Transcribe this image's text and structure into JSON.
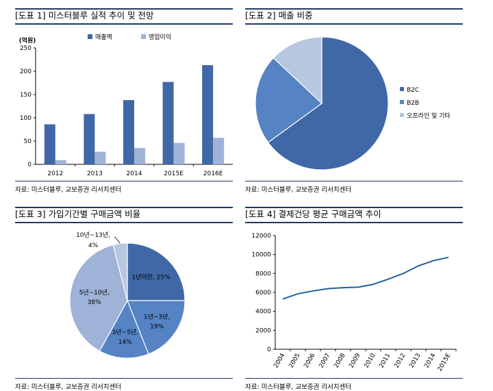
{
  "panels": [
    {
      "title": "[도표 1] 미스터블루 실적 추이 및 전망",
      "source": "자료: 미스터블루, 교보증권 리서치센터"
    },
    {
      "title": "[도표 2] 매출 비중",
      "source": "자료: 미스터블루, 교보증권 리서치센터"
    },
    {
      "title": "[도표 3] 가입기간별 구매금액 비율",
      "source": "자료: 미스터블루, 교보증권 리서치센터"
    },
    {
      "title": "[도표 4] 결제건당 평균 구매금액 추이",
      "source": "자료: 미스터블루, 교보증권 리서치센터"
    }
  ],
  "colors": {
    "dark_blue": "#4068a6",
    "mid_blue": "#5583c3",
    "light_blue": "#9fb3d8",
    "pale_blue": "#b8c7e0",
    "axis": "#000000",
    "line": "#1f5fa0"
  },
  "chart_data": [
    {
      "type": "bar",
      "ylabel": "(억원)",
      "categories": [
        "2012",
        "2013",
        "2014",
        "2015E",
        "2016E"
      ],
      "series": [
        {
          "name": "매출액",
          "values": [
            86,
            108,
            138,
            177,
            213
          ]
        },
        {
          "name": "영업이익",
          "values": [
            9,
            27,
            35,
            46,
            57
          ]
        }
      ],
      "ylim": [
        0,
        250
      ],
      "yticks": [
        0,
        50,
        100,
        150,
        200,
        250
      ],
      "legend": "top"
    },
    {
      "type": "pie",
      "labels": [
        "B2C",
        "B2B",
        "오프라인 및 기타"
      ],
      "values": [
        65,
        22,
        13
      ],
      "legend": "right"
    },
    {
      "type": "pie",
      "labels": [
        "1년미만, 25%",
        "1년~3년, 19%",
        "3년~5년, 14%",
        "5년~10년, 38%",
        "10년~13년, 4%"
      ],
      "values": [
        25,
        19,
        14,
        38,
        4
      ]
    },
    {
      "type": "line",
      "x": [
        "2004",
        "2005",
        "2006",
        "2007",
        "2008",
        "2009",
        "2010",
        "2011",
        "2012",
        "2013",
        "2014",
        "2015E"
      ],
      "series": [
        {
          "values": [
            5300,
            5850,
            6150,
            6400,
            6500,
            6550,
            6850,
            7400,
            8000,
            8800,
            9350,
            9700
          ]
        }
      ],
      "ylim": [
        0,
        12000
      ],
      "yticks": [
        0,
        2000,
        4000,
        6000,
        8000,
        10000,
        12000
      ]
    }
  ]
}
